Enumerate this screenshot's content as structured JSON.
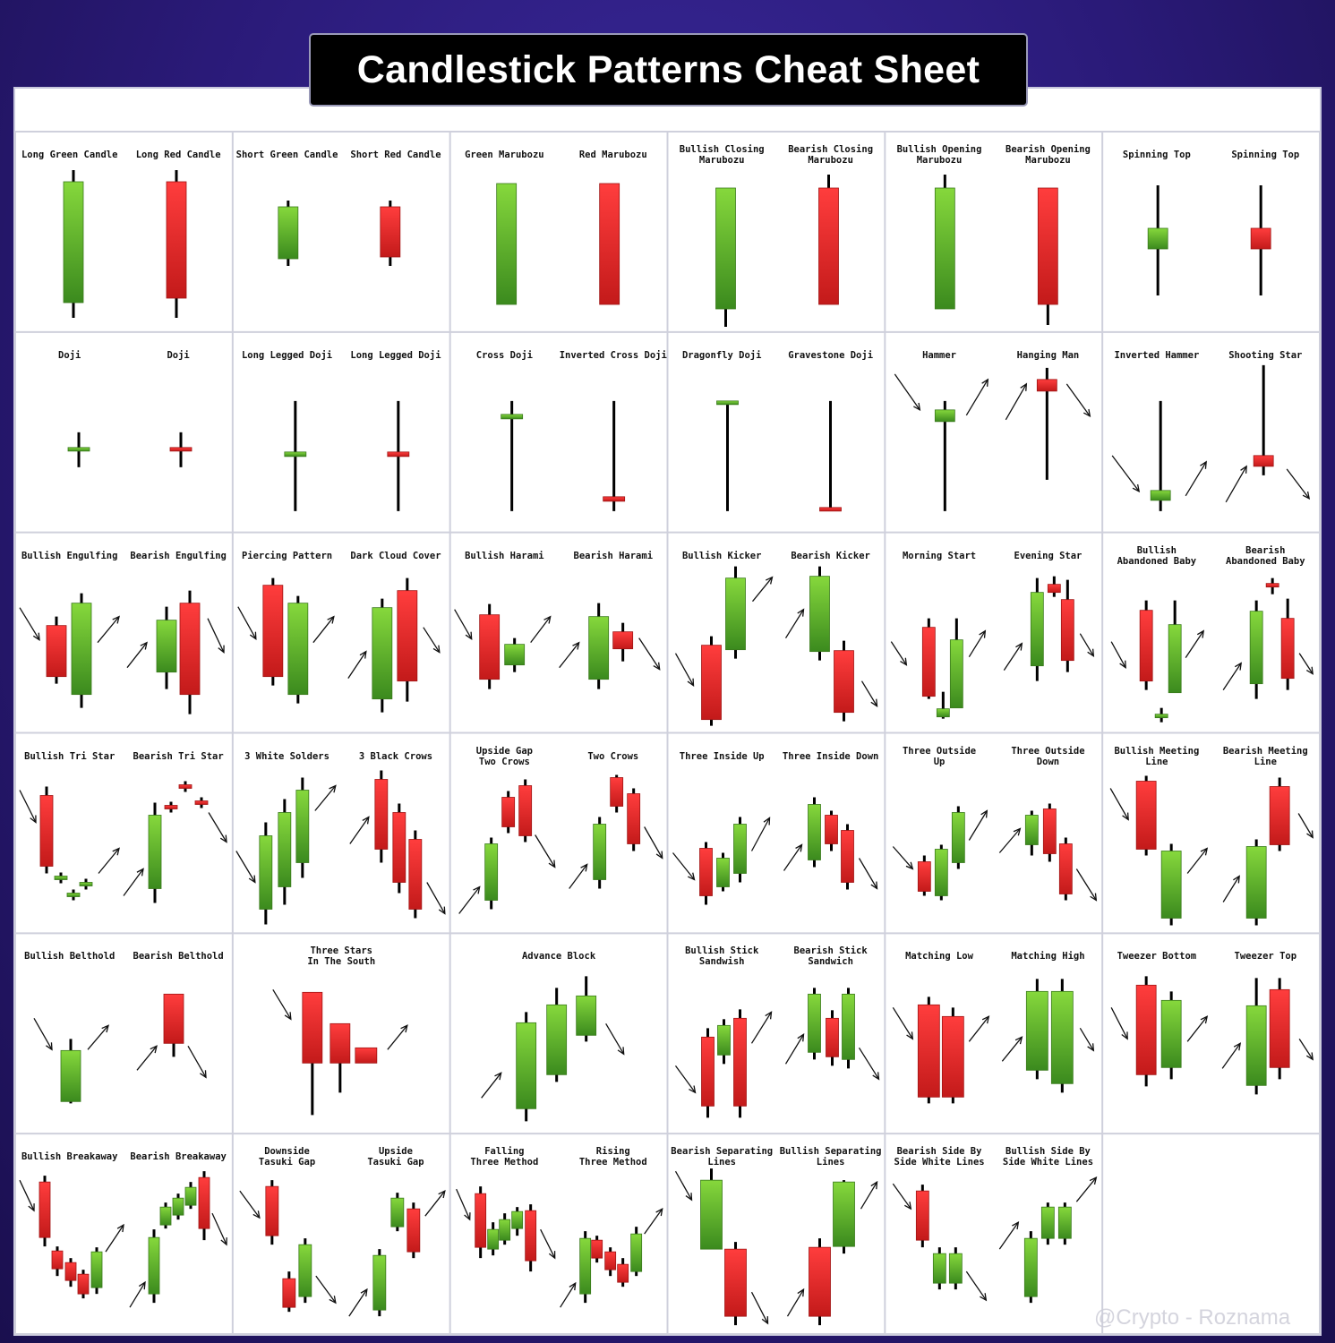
{
  "title": "Candlestick Patterns Cheat Sheet",
  "cells": [
    {
      "labels": [
        "Long Green Candle",
        "Long Red Candle"
      ]
    },
    {
      "labels": [
        "Short Green Candle",
        "Short Red Candle"
      ]
    },
    {
      "labels": [
        "Green Marubozu",
        "Red Marubozu"
      ]
    },
    {
      "labels": [
        "Bullish Closing\nMarubozu",
        "Bearish Closing\nMarubozu"
      ]
    },
    {
      "labels": [
        "Bullish Opening\nMarubozu",
        "Bearish Opening\nMarubozu"
      ]
    },
    {
      "labels": [
        "Spinning Top",
        "Spinning Top"
      ]
    },
    {
      "labels": [
        "Doji",
        "Doji"
      ]
    },
    {
      "labels": [
        "Long Legged Doji",
        "Long Legged Doji"
      ]
    },
    {
      "labels": [
        "Cross Doji",
        "Inverted Cross Doji"
      ]
    },
    {
      "labels": [
        "Dragonfly Doji",
        "Gravestone Doji"
      ]
    },
    {
      "labels": [
        "Hammer",
        "Hanging Man"
      ]
    },
    {
      "labels": [
        "Inverted Hammer",
        "Shooting Star"
      ]
    },
    {
      "labels": [
        "Bullish Engulfing",
        "Bearish Engulfing"
      ]
    },
    {
      "labels": [
        "Piercing Pattern",
        "Dark Cloud Cover"
      ]
    },
    {
      "labels": [
        "Bullish Harami",
        "Bearish Harami"
      ]
    },
    {
      "labels": [
        "Bullish Kicker",
        "Bearish Kicker"
      ]
    },
    {
      "labels": [
        "Morning Start",
        "Evening Star"
      ]
    },
    {
      "labels": [
        "Bullish\nAbandoned Baby",
        "Bearish\nAbandoned Baby"
      ]
    },
    {
      "labels": [
        "Bullish Tri Star",
        "Bearish Tri Star"
      ]
    },
    {
      "labels": [
        "3 White Solders",
        "3 Black Crows"
      ]
    },
    {
      "labels": [
        "Upside Gap\nTwo Crows",
        "Two Crows"
      ]
    },
    {
      "labels": [
        "Three Inside Up",
        "Three Inside Down"
      ]
    },
    {
      "labels": [
        "Three Outside\nUp",
        "Three Outside\nDown"
      ]
    },
    {
      "labels": [
        "Bullish Meeting\nLine",
        "Bearish Meeting\nLine"
      ]
    },
    {
      "labels": [
        "Bullish Belthold",
        "Bearish Belthold"
      ]
    },
    {
      "labels": [
        "Three Stars\nIn The South"
      ]
    },
    {
      "labels": [
        "Advance Block"
      ]
    },
    {
      "labels": [
        "Bullish Stick\nSandwish",
        "Bearish Stick\nSandwich"
      ]
    },
    {
      "labels": [
        "Matching Low",
        "Matching High"
      ]
    },
    {
      "labels": [
        "Tweezer Bottom",
        "Tweezer Top"
      ]
    },
    {
      "labels": [
        "Bullish Breakaway",
        "Bearish Breakaway"
      ]
    },
    {
      "labels": [
        "Downside\nTasuki Gap",
        "Upside\nTasuki Gap"
      ]
    },
    {
      "labels": [
        "Falling\nThree Method",
        "Rising\nThree Method"
      ]
    },
    {
      "labels": [
        "Bearish Separating\nLines",
        "Bullish Separating\nLines"
      ]
    },
    {
      "labels": [
        "Bearish Side By\nSide White Lines",
        "Bullish Side By\nSide White Lines"
      ]
    }
  ],
  "watermark": "@Crypto - Roznama"
}
